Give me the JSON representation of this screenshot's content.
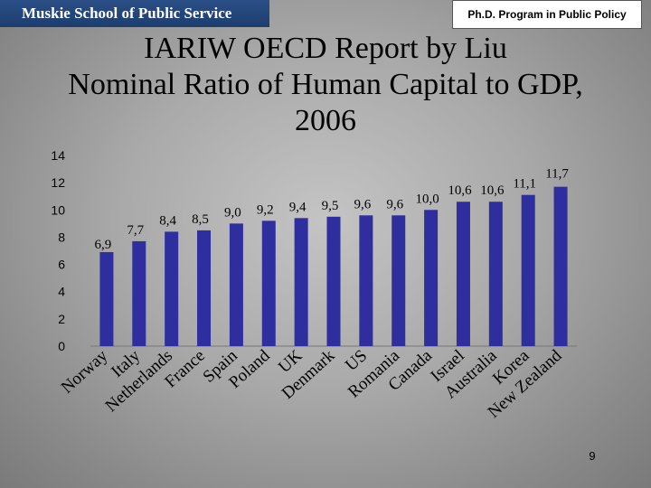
{
  "header": {
    "school": "Muskie School of Public Service",
    "program": "Ph.D. Program in Public Policy"
  },
  "colors": {
    "bar": "#2e2e9e",
    "header_bg": "#1d3d6e"
  },
  "chart_data": {
    "type": "bar",
    "title_lines": [
      "IARIW OECD Report by Liu",
      "Nominal Ratio of Human Capital to GDP,",
      "2006"
    ],
    "categories": [
      "Norway",
      "Italy",
      "Netherlands",
      "France",
      "Spain",
      "Poland",
      "UK",
      "Denmark",
      "US",
      "Romania",
      "Canada",
      "Israel",
      "Australia",
      "Korea",
      "New Zealand"
    ],
    "values": [
      6.9,
      7.7,
      8.4,
      8.5,
      9.0,
      9.2,
      9.4,
      9.5,
      9.6,
      9.6,
      10.0,
      10.6,
      10.6,
      11.1,
      11.7
    ],
    "value_labels": [
      "6,9",
      "7,7",
      "8,4",
      "8,5",
      "9,0",
      "9,2",
      "9,4",
      "9,5",
      "9,6",
      "9,6",
      "10,0",
      "10,6",
      "10,6",
      "11,1",
      "11,7"
    ],
    "ylim": [
      0,
      14
    ],
    "yticks": [
      0,
      2,
      4,
      6,
      8,
      10,
      12,
      14
    ],
    "xlabel": "",
    "ylabel": ""
  },
  "page_number": "9"
}
